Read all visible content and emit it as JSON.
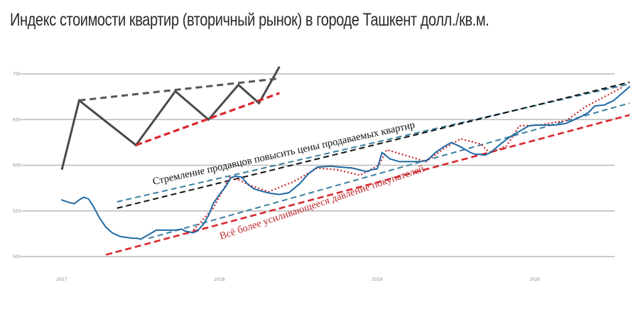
{
  "title": "Индекс стоимости квартир (вторичный рынок) в городе Ташкент долл./кв.м.",
  "chart_data": {
    "type": "line",
    "title": "Индекс стоимости квартир (вторичный рынок) в городе Ташкент долл./кв.м.",
    "xlabel": "",
    "ylabel": "",
    "grid": true,
    "ylim": [
      500,
      700
    ],
    "yticks": [
      500,
      550,
      600,
      650,
      700
    ],
    "ytick_labels": [
      "500",
      "550",
      "600",
      "650",
      "700"
    ],
    "xlim": [
      2017.0,
      2020.6
    ],
    "xticks": [
      2017,
      2018,
      2019,
      2020
    ],
    "xtick_labels": [
      "2017",
      "2018",
      "2019",
      "2020"
    ],
    "series": [
      {
        "color": "#1f6aa5",
        "x": [
          2017.0,
          2017.05,
          2017.08,
          2017.11,
          2017.14,
          2017.17,
          2017.2,
          2017.24,
          2017.28,
          2017.32,
          2017.37,
          2017.41,
          2017.45,
          2017.48,
          2017.5,
          2017.52,
          2017.55,
          2017.58,
          2017.6,
          2017.63,
          2017.66,
          2017.69,
          2017.72,
          2017.76,
          2017.78,
          2017.81,
          2017.83,
          2017.86,
          2017.9,
          2017.93,
          2017.96,
          2018.0,
          2018.04,
          2018.07,
          2018.1,
          2018.14,
          2018.18,
          2018.22,
          2018.28,
          2018.33,
          2018.38,
          2018.44,
          2018.51,
          2018.56,
          2018.62,
          2018.7,
          2018.77,
          2018.84,
          2018.91,
          2018.94,
          2018.96,
          2019.0,
          2019.03,
          2019.08,
          2019.14,
          2019.2,
          2019.27,
          2019.31,
          2019.34,
          2019.37,
          2019.42,
          2019.47,
          2019.53,
          2019.59,
          2019.62,
          2019.65,
          2019.68,
          2019.72,
          2019.78,
          2019.84,
          2019.9,
          2019.96,
          2020.0,
          2020.05,
          2020.12,
          2020.17,
          2020.2,
          2020.25,
          2020.3,
          2020.34,
          2020.38,
          2020.44,
          2020.5,
          2020.56,
          2020.6
        ],
        "y": [
          562,
          559,
          558,
          562,
          565,
          563,
          555,
          542,
          532,
          526,
          522,
          521,
          520,
          520,
          519,
          521,
          524,
          527,
          529,
          529,
          529,
          529,
          529,
          530,
          528,
          527,
          526,
          528,
          536,
          545,
          558,
          568,
          577,
          586,
          588,
          587,
          579,
          574,
          571,
          569,
          568,
          570,
          580,
          590,
          598,
          599,
          598,
          597,
          594,
          593,
          595,
          596,
          614,
          607,
          604,
          604,
          604,
          605,
          609,
          614,
          620,
          625,
          620,
          614,
          612,
          612,
          611,
          614,
          623,
          631,
          637,
          643,
          644,
          644,
          644,
          645,
          646,
          650,
          654,
          658,
          665,
          666,
          671,
          680,
          686
        ]
      }
    ]
  },
  "overlay": {
    "zigzag": [
      [
        2017.0,
        595
      ],
      [
        2017.11,
        671
      ],
      [
        2017.47,
        622
      ],
      [
        2017.72,
        681
      ],
      [
        2017.93,
        650
      ],
      [
        2018.12,
        688
      ],
      [
        2018.25,
        668
      ],
      [
        2018.38,
        708
      ]
    ],
    "upper_gray_line": [
      [
        2017.11,
        671
      ],
      [
        2018.38,
        695
      ]
    ],
    "upper_red_line": [
      [
        2017.47,
        622
      ],
      [
        2018.38,
        679
      ]
    ],
    "black_resistance": [
      [
        2017.35,
        553
      ],
      [
        2020.6,
        691
      ]
    ],
    "teal_upper": [
      [
        2017.35,
        560
      ],
      [
        2020.6,
        689
      ]
    ],
    "teal_lower": [
      [
        2017.55,
        520
      ],
      [
        2020.6,
        668
      ]
    ],
    "red_support": [
      [
        2017.28,
        502
      ],
      [
        2020.6,
        655
      ]
    ],
    "red_dotted": [
      [
        2017.82,
        526
      ],
      [
        2017.96,
        553
      ],
      [
        2018.07,
        588
      ],
      [
        2018.21,
        577
      ],
      [
        2018.31,
        571
      ],
      [
        2018.47,
        582
      ],
      [
        2018.62,
        597
      ],
      [
        2018.75,
        595
      ],
      [
        2018.89,
        589
      ],
      [
        2019.01,
        600
      ],
      [
        2019.06,
        617
      ],
      [
        2019.31,
        604
      ],
      [
        2019.42,
        618
      ],
      [
        2019.53,
        629
      ],
      [
        2019.66,
        623
      ],
      [
        2019.69,
        617
      ],
      [
        2019.72,
        614
      ],
      [
        2019.82,
        621
      ],
      [
        2019.9,
        643
      ],
      [
        2020.03,
        644
      ],
      [
        2020.2,
        649
      ],
      [
        2020.32,
        664
      ],
      [
        2020.56,
        686
      ]
    ]
  },
  "annotations": {
    "sellers": "Стремление продавцов повысить цены продаваемых квартир",
    "buyers": "Всё более усиливающееся давление покупателей"
  },
  "colors": {
    "series_line": "#1f6aa5",
    "zigzag": "#4a4a4a",
    "red_dash": "#d9272e",
    "red_dotted": "#c8232a",
    "teal_dash": "#3d7fa0",
    "black_dash": "#111111",
    "grid": "#b9b9b9",
    "annotation_red": "#c0282d"
  }
}
